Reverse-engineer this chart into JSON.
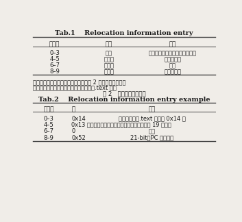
{
  "tab1_title_en": "Tab.1    Relocation information entry",
  "tab1_header": [
    "偏移量",
    "类型",
    "描述"
  ],
  "tab1_rows": [
    [
      "0–3",
      "整型",
      "指令重定位之前在段中的偏移量"
    ],
    [
      "4–5",
      "短整型",
      "符号表索引"
    ],
    [
      "6–7",
      "短整型",
      "保留"
    ],
    [
      "8–9",
      "短整型",
      "重定位类型"
    ]
  ],
  "middle_text_line1": "地址信息添加到该可重定位指令上。表 2 是重定位信息项的",
  "middle_text_line2": "一个例子，这里假设该重定位信息项属于.text 段。",
  "tab2_title_cn": "表 2   重定位信息项例子",
  "tab2_title_en": "Tab.2    Relocation information entry example",
  "tab2_h1": "偏移量",
  "tab2_h2": "値",
  "tab2_h3": "描述",
  "tab2_rows": [
    [
      "0–3",
      "0x14",
      "重定位指令在.text 段偏移 0x14 处"
    ],
    [
      "4–5",
      "0x13 重定位指令索引的地址符号处于符号表中第 19 个符号",
      ""
    ],
    [
      "6–7",
      "0",
      "保留"
    ],
    [
      "8–9",
      "0x52",
      "21-bit，PC 跳转指令"
    ]
  ],
  "bg_color": "#f0ede8",
  "text_color": "#1a1a1a",
  "line_color": "#444444"
}
